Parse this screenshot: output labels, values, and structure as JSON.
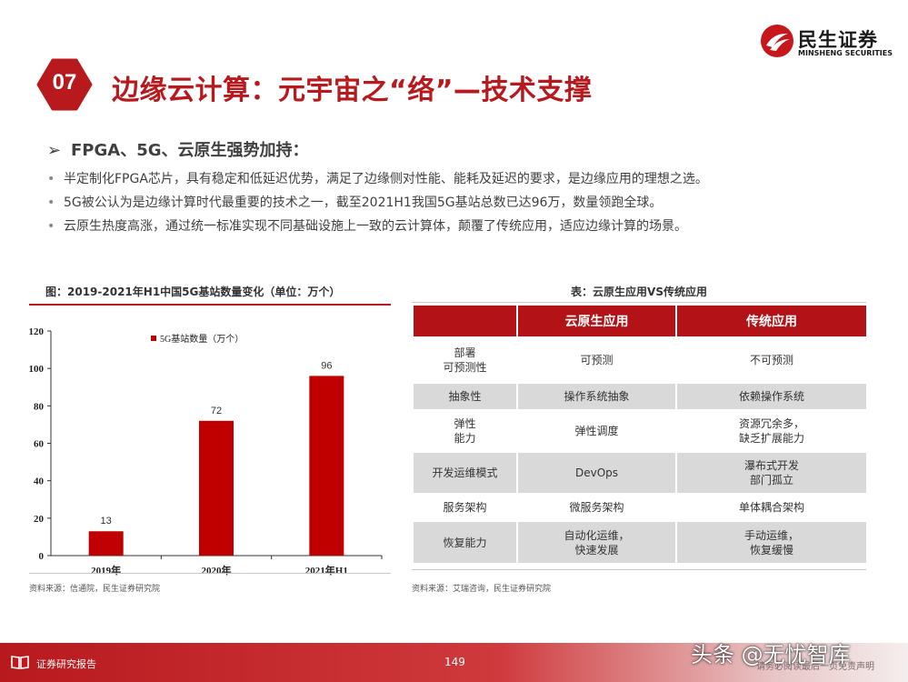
{
  "brand": {
    "name_cn": "民生证券",
    "name_en": "MINSHENG SECURITIES",
    "accent": "#b8191d"
  },
  "slide": {
    "section_number": "07",
    "title": "边缘云计算：元宇宙之“络”—技术支撑"
  },
  "content": {
    "subheading_marker": "➢",
    "subheading": "FPGA、5G、云原生强势加持：",
    "bullets": [
      "半定制化FPGA芯片，具有稳定和低延迟优势，满足了边缘侧对性能、能耗及延迟的要求，是边缘应用的理想之选。",
      "5G被公认为是边缘计算时代最重要的技术之一，截至2021H1我国5G基站总数已达96万，数量领跑全球。",
      "云原生热度高涨，通过统一标准实现不同基础设施上一致的云计算体，颠覆了传统应用，适应边缘计算的场景。"
    ]
  },
  "chart_panel": {
    "title": "图：2019-2021年H1中国5G基站数量变化（单位：万个）",
    "source": "资料来源：信通院，民生证券研究院"
  },
  "chart_data": {
    "type": "bar",
    "categories": [
      "2019年",
      "2020年",
      "2021年H1"
    ],
    "series": [
      {
        "name": "5G基站数量（万个）",
        "values": [
          13,
          72,
          96
        ],
        "color": "#c00000"
      }
    ],
    "ylim": [
      0,
      120
    ],
    "yticks": [
      0,
      20,
      40,
      60,
      80,
      100,
      120
    ],
    "data_labels": true,
    "legend_position": "top-center",
    "grid": false
  },
  "table_panel": {
    "title": "表：云原生应用VS传统应用",
    "headers": [
      "",
      "云原生应用",
      "传统应用"
    ],
    "rows": [
      [
        "部署\n可预测性",
        "可预测",
        "不可预测"
      ],
      [
        "抽象性",
        "操作系统抽象",
        "依赖操作系统"
      ],
      [
        "弹性\n能力",
        "弹性调度",
        "资源冗余多，\n缺乏扩展能力"
      ],
      [
        "开发运维模式",
        "DevOps",
        "瀑布式开发\n部门孤立"
      ],
      [
        "服务架构",
        "微服务架构",
        "单体耦合架构"
      ],
      [
        "恢复能力",
        "自动化运维，\n快速发展",
        "手动运维，\n恢复缓慢"
      ]
    ],
    "source": "资料来源：艾瑞咨询，民生证券研究院"
  },
  "footer": {
    "label": "证券研究报告",
    "page_number": "149",
    "disclaimer": "请务必阅读最后一页免责声明",
    "watermark": "头条 @无忧智库"
  }
}
